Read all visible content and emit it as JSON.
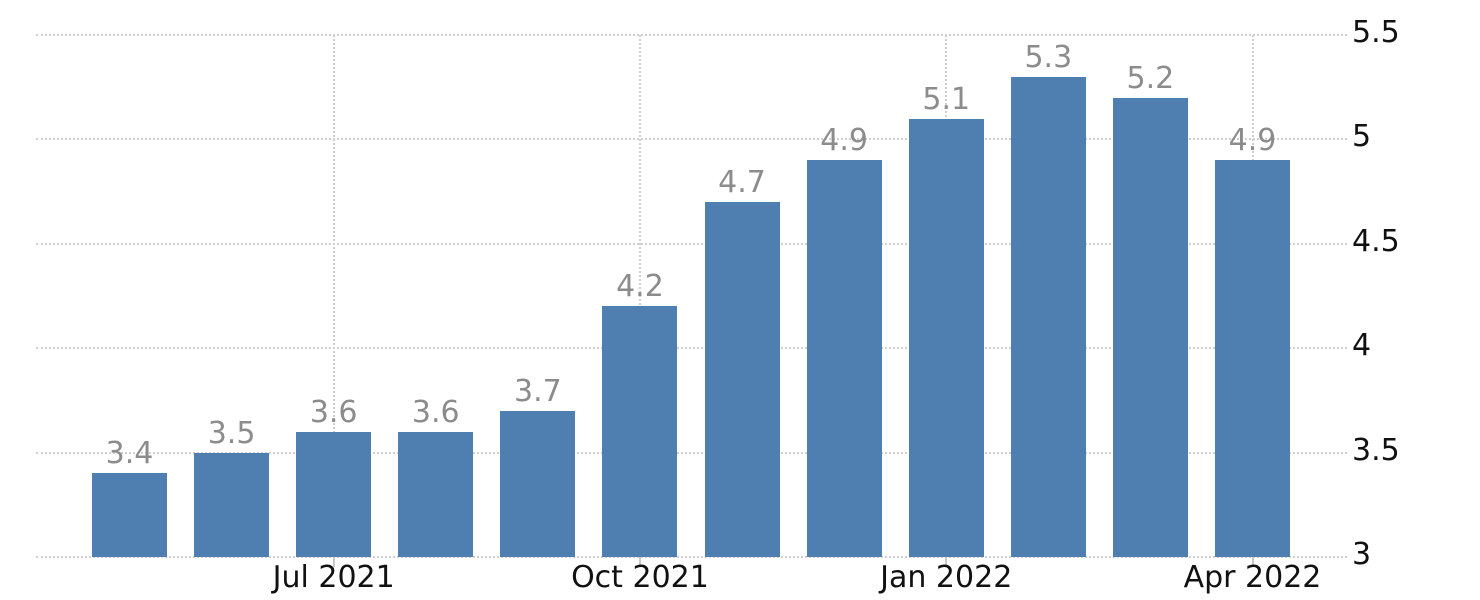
{
  "chart_data": {
    "type": "bar",
    "title": "",
    "xlabel": "",
    "ylabel": "",
    "values": [
      3.4,
      3.5,
      3.6,
      3.6,
      3.7,
      4.2,
      4.7,
      4.9,
      5.1,
      5.3,
      5.2,
      4.9
    ],
    "value_labels": [
      "3.4",
      "3.5",
      "3.6",
      "3.6",
      "3.7",
      "4.2",
      "4.7",
      "4.9",
      "5.1",
      "5.3",
      "5.2",
      "4.9"
    ],
    "x_tick_labels": [
      {
        "index": 2,
        "label": "Jul 2021"
      },
      {
        "index": 5,
        "label": "Oct 2021"
      },
      {
        "index": 8,
        "label": "Jan 2022"
      },
      {
        "index": 11,
        "label": "Apr 2022"
      }
    ],
    "y_tick_labels": [
      "5.5",
      "5",
      "4.5",
      "4",
      "3.5",
      "3"
    ],
    "y_tick_values": [
      5.5,
      5,
      4.5,
      4,
      3.5,
      3
    ],
    "ylim": [
      3,
      5.5
    ],
    "legend": "none",
    "grid": {
      "style": "dotted",
      "horizontal": true,
      "vertical_at_labeled_ticks_only": true,
      "y_axis_side": "right"
    },
    "colors": {
      "bar": "#4f7eb0",
      "value_label": "#8c8c8c",
      "axis_label": "#111111",
      "gridline": "#cfcfcf",
      "tick": "#c9c9c9",
      "background": "#ffffff"
    }
  }
}
